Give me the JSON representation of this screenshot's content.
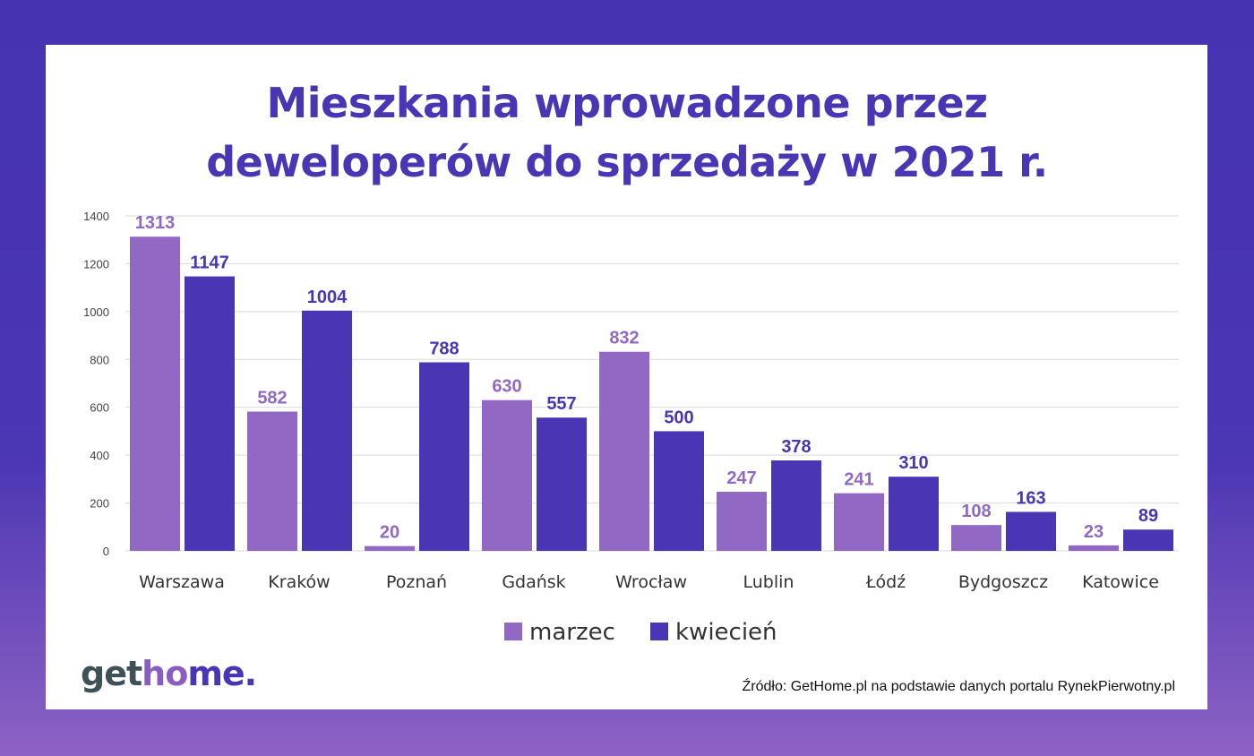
{
  "chart_data": {
    "type": "bar",
    "title": "Mieszkania wprowadzone przez deweloperów do sprzedaży w 2021 r.",
    "title_lines": [
      "Mieszkania wprowadzone przez",
      "deweloperów do sprzedaży w 2021 r."
    ],
    "categories": [
      "Warszawa",
      "Kraków",
      "Poznań",
      "Gdańsk",
      "Wrocław",
      "Lublin",
      "Łódź",
      "Bydgoszcz",
      "Katowice"
    ],
    "series": [
      {
        "name": "marzec",
        "color": "#9169c4",
        "values": [
          1313,
          582,
          20,
          630,
          832,
          247,
          241,
          108,
          23
        ]
      },
      {
        "name": "kwiecień",
        "color": "#4a35b4",
        "values": [
          1147,
          1004,
          788,
          557,
          500,
          378,
          310,
          163,
          89
        ]
      }
    ],
    "ylim": [
      0,
      1400
    ],
    "yticks": [
      0,
      200,
      400,
      600,
      800,
      1000,
      1200,
      1400
    ],
    "grid": true,
    "legend_position": "bottom"
  },
  "logo": {
    "part1": "get",
    "part2": "ho",
    "part3": "me."
  },
  "source": "Źródło: GetHome.pl na podstawie danych portalu RynekPierwotny.pl"
}
